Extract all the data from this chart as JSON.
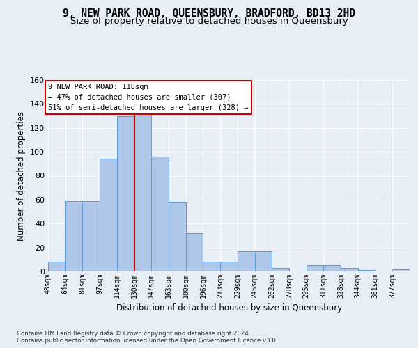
{
  "title_line1": "9, NEW PARK ROAD, QUEENSBURY, BRADFORD, BD13 2HD",
  "title_line2": "Size of property relative to detached houses in Queensbury",
  "xlabel": "Distribution of detached houses by size in Queensbury",
  "ylabel": "Number of detached properties",
  "footer_line1": "Contains HM Land Registry data © Crown copyright and database right 2024.",
  "footer_line2": "Contains public sector information licensed under the Open Government Licence v3.0.",
  "annotation_line1": "9 NEW PARK ROAD: 118sqm",
  "annotation_line2": "← 47% of detached houses are smaller (307)",
  "annotation_line3": "51% of semi-detached houses are larger (328) →",
  "bar_color": "#aec6e8",
  "bar_edge_color": "#5b9bd5",
  "vline_color": "#cc0000",
  "vline_bar_index": 4,
  "categories": [
    "48sqm",
    "64sqm",
    "81sqm",
    "97sqm",
    "114sqm",
    "130sqm",
    "147sqm",
    "163sqm",
    "180sqm",
    "196sqm",
    "213sqm",
    "229sqm",
    "245sqm",
    "262sqm",
    "278sqm",
    "295sqm",
    "311sqm",
    "328sqm",
    "344sqm",
    "361sqm",
    "377sqm"
  ],
  "values": [
    8,
    59,
    59,
    94,
    130,
    132,
    96,
    58,
    32,
    8,
    8,
    17,
    17,
    3,
    0,
    5,
    5,
    3,
    1,
    0,
    2
  ],
  "ylim": [
    0,
    160
  ],
  "yticks": [
    0,
    20,
    40,
    60,
    80,
    100,
    120,
    140,
    160
  ],
  "background_color": "#e8eef5",
  "plot_background": "#e8eef5",
  "grid_color": "#ffffff",
  "title_fontsize": 10.5,
  "subtitle_fontsize": 9.5
}
